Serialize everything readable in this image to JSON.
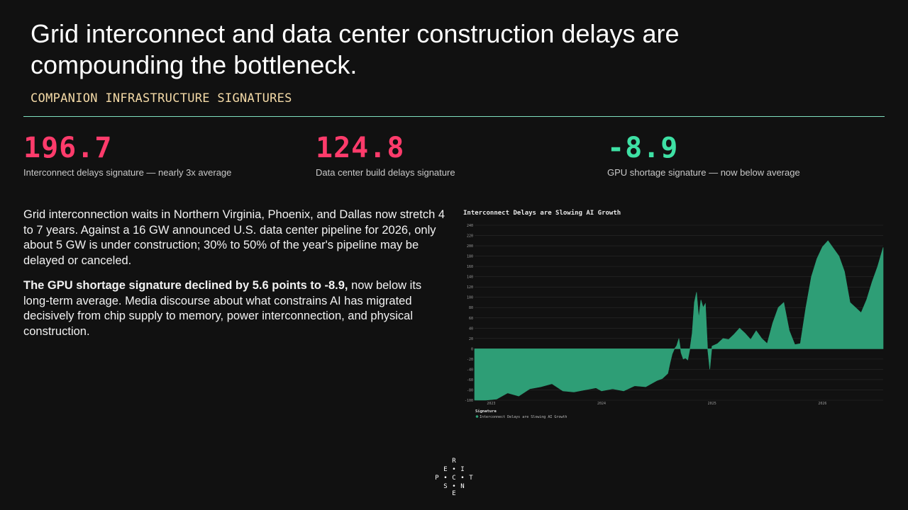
{
  "slide": {
    "title": "Grid interconnect and data center construction delays are compounding the bottleneck.",
    "subtitle": "COMPANION INFRASTRUCTURE SIGNATURES"
  },
  "stats": [
    {
      "value": "196.7",
      "label": "Interconnect delays signature — nearly 3x average",
      "color": "#ff3b6b"
    },
    {
      "value": "124.8",
      "label": "Data center build delays signature",
      "color": "#ff3b6b"
    },
    {
      "value": "-8.9",
      "label": "GPU shortage signature — now below average",
      "color": "#3ee0a4"
    }
  ],
  "body": {
    "p1": "Grid interconnection waits in Northern Virginia, Phoenix, and Dallas now stretch 4 to 7 years. Against a 16 GW announced U.S. data center pipeline for 2026, only about 5 GW is under construction; 30% to 50% of the year's pipeline may be delayed or canceled.",
    "p2_bold": "The GPU shortage signature declined by 5.6 points to -8.9,",
    "p2_rest": " now below its long-term average. Media discourse about what constrains AI has migrated decisively from chip supply to memory, power interconnection, and physical construction."
  },
  "logo": {
    "letters": [
      "R",
      "E",
      "I",
      "P",
      "C",
      "T",
      "S",
      "N",
      "E"
    ]
  },
  "chart_data": {
    "type": "area",
    "title": "Interconnect Delays are Slowing AI Growth",
    "xlabel": "",
    "ylabel": "",
    "ylim": [
      -100,
      240
    ],
    "yticks": [
      -100,
      -80,
      -60,
      -40,
      -20,
      0,
      20,
      40,
      60,
      80,
      100,
      120,
      140,
      160,
      180,
      200,
      220,
      240
    ],
    "xticks": [
      "2023",
      "2024",
      "2025",
      "2026"
    ],
    "xlim": [
      2022.85,
      2026.55
    ],
    "legend_title": "Signature",
    "legend_position": "bottom-left",
    "grid": true,
    "color": "#2e9e76",
    "series": [
      {
        "name": "Interconnect Delays are Slowing AI Growth",
        "x": [
          2022.85,
          2022.95,
          2023.05,
          2023.15,
          2023.25,
          2023.35,
          2023.45,
          2023.55,
          2023.65,
          2023.75,
          2023.85,
          2023.95,
          2024.0,
          2024.1,
          2024.2,
          2024.3,
          2024.4,
          2024.5,
          2024.55,
          2024.6,
          2024.62,
          2024.64,
          2024.66,
          2024.68,
          2024.7,
          2024.72,
          2024.74,
          2024.76,
          2024.78,
          2024.8,
          2024.82,
          2024.84,
          2024.86,
          2024.88,
          2024.9,
          2024.92,
          2024.94,
          2024.96,
          2024.98,
          2025.0,
          2025.05,
          2025.1,
          2025.15,
          2025.2,
          2025.25,
          2025.3,
          2025.35,
          2025.4,
          2025.45,
          2025.5,
          2025.55,
          2025.6,
          2025.65,
          2025.7,
          2025.75,
          2025.8,
          2025.85,
          2025.9,
          2025.95,
          2026.0,
          2026.05,
          2026.1,
          2026.15,
          2026.2,
          2026.25,
          2026.3,
          2026.35,
          2026.4,
          2026.45,
          2026.5,
          2026.55
        ],
        "values": [
          -100,
          -100,
          -98,
          -86,
          -92,
          -78,
          -74,
          -68,
          -82,
          -84,
          -80,
          -76,
          -82,
          -78,
          -82,
          -72,
          -74,
          -62,
          -58,
          -48,
          -28,
          -10,
          0,
          6,
          20,
          -8,
          -20,
          -18,
          -22,
          0,
          30,
          90,
          110,
          60,
          95,
          80,
          88,
          0,
          -40,
          5,
          10,
          20,
          18,
          28,
          40,
          30,
          18,
          35,
          20,
          10,
          50,
          80,
          90,
          35,
          8,
          10,
          80,
          140,
          175,
          198,
          210,
          195,
          180,
          150,
          90,
          80,
          70,
          95,
          130,
          160,
          197
        ]
      }
    ]
  }
}
